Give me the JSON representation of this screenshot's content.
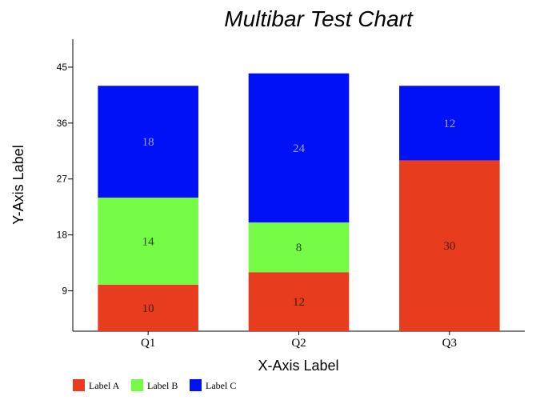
{
  "chart_data": {
    "type": "bar",
    "stacked": true,
    "title": "Multibar Test Chart",
    "xlabel": "X-Axis Label",
    "ylabel": "Y-Axis Label",
    "categories": [
      "Q1",
      "Q2",
      "Q3"
    ],
    "series": [
      {
        "name": "Label A",
        "values": [
          10,
          12,
          30
        ],
        "color": "#E83C1F",
        "label_color": "#4a1a10"
      },
      {
        "name": "Label B",
        "values": [
          14,
          8,
          0
        ],
        "color": "#75FB46",
        "label_color": "#1f4a12"
      },
      {
        "name": "Label C",
        "values": [
          18,
          24,
          12
        ],
        "color": "#0011F6",
        "label_color": "#9aa4f0"
      }
    ],
    "yticks": [
      9,
      18,
      27,
      36,
      45
    ],
    "ylim": [
      2.5,
      49.5
    ],
    "grid": false,
    "legend": "bottom-left"
  }
}
